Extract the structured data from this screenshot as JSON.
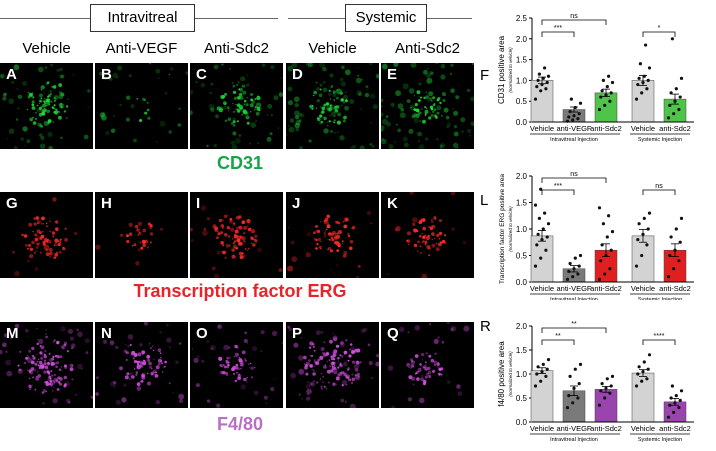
{
  "headers": {
    "intravitreal": "Intravitreal",
    "systemic": "Systemic"
  },
  "columns": [
    "Vehicle",
    "Anti-VEGF",
    "Anti-Sdc2",
    "Vehicle",
    "Anti-Sdc2"
  ],
  "rows": [
    {
      "label": "CD31",
      "label_color": "#1aa44a",
      "panels": [
        "A",
        "B",
        "C",
        "D",
        "E"
      ]
    },
    {
      "label": "Transcription factor ERG",
      "label_color": "#e5252a",
      "panels": [
        "G",
        "H",
        "I",
        "J",
        "K"
      ]
    },
    {
      "label": "F4/80",
      "label_color": "#b96fc4",
      "panels": [
        "M",
        "N",
        "O",
        "P",
        "Q"
      ]
    }
  ],
  "chart_data": [
    {
      "panel": "F",
      "type": "bar",
      "ylabel": "CD31 positive area",
      "ysublabel": "(normalized to vehicle)",
      "ylim": [
        0,
        2.5
      ],
      "yticks": [
        "0.0",
        "0.5",
        "1.0",
        "1.5",
        "2.0",
        "2.5"
      ],
      "categories": [
        "Vehicle",
        "anti-VEGF",
        "anti-Sdc2",
        "Vehicle",
        "anti-Sdc2"
      ],
      "values": [
        1.0,
        0.3,
        0.7,
        1.0,
        0.55
      ],
      "errors": [
        0.08,
        0.06,
        0.09,
        0.12,
        0.12
      ],
      "colors": [
        "#d3d3d3",
        "#7a7a7a",
        "#4fc34a",
        "#d3d3d3",
        "#4fc34a"
      ],
      "groups": [
        "Intravitreal Injection",
        "Systemic Injection"
      ],
      "points": [
        [
          0.55,
          0.75,
          0.8,
          0.85,
          0.9,
          0.95,
          1.0,
          1.05,
          1.1,
          1.15,
          1.3
        ],
        [
          0.02,
          0.05,
          0.08,
          0.12,
          0.15,
          0.2,
          0.25,
          0.35,
          0.45,
          0.55
        ],
        [
          0.3,
          0.4,
          0.5,
          0.6,
          0.65,
          0.7,
          0.75,
          0.85,
          0.95,
          1.0,
          1.1
        ],
        [
          0.55,
          0.7,
          0.8,
          0.9,
          0.95,
          1.0,
          1.05,
          1.1,
          1.3,
          1.4,
          1.85
        ],
        [
          0.1,
          0.2,
          0.3,
          0.4,
          0.5,
          0.6,
          0.7,
          0.8,
          1.05,
          2.0
        ]
      ],
      "comparisons": [
        {
          "from": 0,
          "to": 1,
          "label": "***"
        },
        {
          "from": 0,
          "to": 2,
          "label": "ns"
        },
        {
          "from": 3,
          "to": 4,
          "label": "*"
        }
      ]
    },
    {
      "panel": "L",
      "type": "bar",
      "ylabel": "Transcription factor ERG positive area",
      "ysublabel": "(normalized to vehicle)",
      "ylim": [
        0,
        2.0
      ],
      "yticks": [
        "0.0",
        "0.5",
        "1.0",
        "1.5",
        "2.0"
      ],
      "categories": [
        "Vehicle",
        "anti-VEGF",
        "anti-Sdc2",
        "Vehicle",
        "anti-Sdc2"
      ],
      "values": [
        0.87,
        0.25,
        0.6,
        0.87,
        0.6
      ],
      "errors": [
        0.1,
        0.06,
        0.12,
        0.12,
        0.12
      ],
      "colors": [
        "#d3d3d3",
        "#7a7a7a",
        "#e02020",
        "#d3d3d3",
        "#e02020"
      ],
      "groups": [
        "Intravitreal Injection",
        "Systemic Injection"
      ],
      "points": [
        [
          0.3,
          0.45,
          0.6,
          0.7,
          0.8,
          0.85,
          0.9,
          1.0,
          1.1,
          1.2,
          1.3,
          1.45,
          1.75
        ],
        [
          0.05,
          0.1,
          0.15,
          0.2,
          0.25,
          0.3,
          0.35,
          0.45,
          0.5
        ],
        [
          0.05,
          0.15,
          0.25,
          0.4,
          0.5,
          0.6,
          0.7,
          0.85,
          0.95,
          1.1,
          1.25,
          1.4
        ],
        [
          0.3,
          0.5,
          0.7,
          0.8,
          0.9,
          1.0,
          1.1,
          1.2,
          1.3
        ],
        [
          0.1,
          0.25,
          0.4,
          0.5,
          0.6,
          0.75,
          0.85,
          1.0,
          1.2
        ]
      ],
      "comparisons": [
        {
          "from": 0,
          "to": 1,
          "label": "***"
        },
        {
          "from": 0,
          "to": 2,
          "label": "ns"
        },
        {
          "from": 3,
          "to": 4,
          "label": "ns"
        }
      ]
    },
    {
      "panel": "R",
      "type": "bar",
      "ylabel": "f4/80 positive area",
      "ysublabel": "(normalized to vehicle)",
      "ylim": [
        0,
        2.0
      ],
      "yticks": [
        "0.0",
        "0.5",
        "1.0",
        "1.5",
        "2.0"
      ],
      "categories": [
        "Vehicle",
        "anti-VEGF",
        "anti-Sdc2",
        "Vehicle",
        "anti-Sdc2"
      ],
      "values": [
        1.07,
        0.65,
        0.68,
        1.02,
        0.42
      ],
      "errors": [
        0.06,
        0.1,
        0.06,
        0.07,
        0.07
      ],
      "colors": [
        "#d3d3d3",
        "#7a7a7a",
        "#9a45ad",
        "#d3d3d3",
        "#9a45ad"
      ],
      "groups": [
        "Intravitreal Injection",
        "Systemic Injection"
      ],
      "points": [
        [
          0.75,
          0.85,
          0.95,
          1.0,
          1.05,
          1.1,
          1.15,
          1.2,
          1.3
        ],
        [
          0.3,
          0.4,
          0.5,
          0.55,
          0.7,
          0.8,
          0.95,
          1.1,
          1.2
        ],
        [
          0.35,
          0.5,
          0.6,
          0.65,
          0.7,
          0.75,
          0.8,
          0.9,
          0.95
        ],
        [
          0.75,
          0.85,
          0.9,
          1.0,
          1.05,
          1.1,
          1.15,
          1.25,
          1.4
        ],
        [
          0.1,
          0.2,
          0.3,
          0.35,
          0.4,
          0.45,
          0.5,
          0.55,
          0.65,
          0.75
        ]
      ],
      "comparisons": [
        {
          "from": 0,
          "to": 1,
          "label": "**"
        },
        {
          "from": 0,
          "to": 2,
          "label": "**"
        },
        {
          "from": 3,
          "to": 4,
          "label": "****"
        }
      ]
    }
  ]
}
